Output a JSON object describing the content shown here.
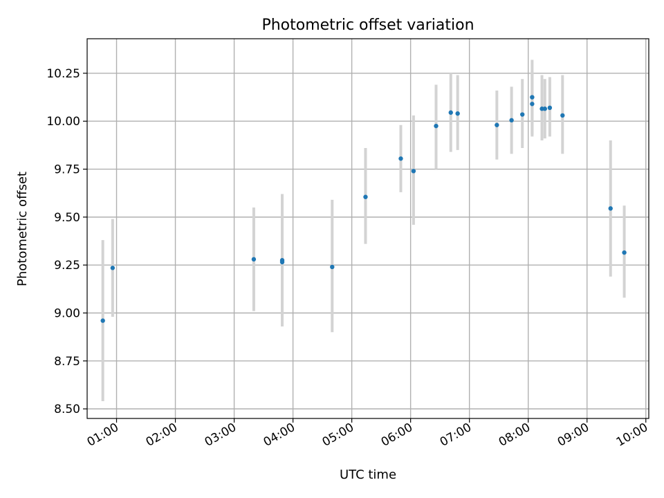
{
  "chart_data": {
    "type": "scatter",
    "title": "Photometric offset variation",
    "xlabel": "UTC time",
    "ylabel": "Photometric offset",
    "x_unit": "hours UTC",
    "xlim": [
      0.5,
      10.05
    ],
    "ylim": [
      8.45,
      10.43
    ],
    "x_ticks": [
      {
        "value": 1,
        "label": "01:00"
      },
      {
        "value": 2,
        "label": "02:00"
      },
      {
        "value": 3,
        "label": "03:00"
      },
      {
        "value": 4,
        "label": "04:00"
      },
      {
        "value": 5,
        "label": "05:00"
      },
      {
        "value": 6,
        "label": "06:00"
      },
      {
        "value": 7,
        "label": "07:00"
      },
      {
        "value": 8,
        "label": "08:00"
      },
      {
        "value": 9,
        "label": "09:00"
      },
      {
        "value": 10,
        "label": "10:00"
      }
    ],
    "y_ticks": [
      {
        "value": 8.5,
        "label": "8.50"
      },
      {
        "value": 8.75,
        "label": "8.75"
      },
      {
        "value": 9.0,
        "label": "9.00"
      },
      {
        "value": 9.25,
        "label": "9.25"
      },
      {
        "value": 9.5,
        "label": "9.50"
      },
      {
        "value": 9.75,
        "label": "9.75"
      },
      {
        "value": 10.0,
        "label": "10.00"
      },
      {
        "value": 10.25,
        "label": "10.25"
      }
    ],
    "grid": true,
    "colors": {
      "point": "#1f77b4",
      "errorbar": "#d3d3d3",
      "grid": "#b0b0b0",
      "axes": "#000000"
    },
    "points": [
      {
        "x": "00:46",
        "y": 8.96,
        "ylow": 8.54,
        "yhigh": 9.38
      },
      {
        "x": "00:56",
        "y": 9.235,
        "ylow": 8.98,
        "yhigh": 9.49
      },
      {
        "x": "03:20",
        "y": 9.28,
        "ylow": 9.01,
        "yhigh": 9.55
      },
      {
        "x": "03:49",
        "y": 9.275,
        "ylow": 8.93,
        "yhigh": 9.62
      },
      {
        "x": "03:49",
        "y": 9.265,
        "ylow": 8.93,
        "yhigh": 9.62
      },
      {
        "x": "04:40",
        "y": 9.24,
        "ylow": 8.9,
        "yhigh": 9.59
      },
      {
        "x": "05:14",
        "y": 9.605,
        "ylow": 9.36,
        "yhigh": 9.86
      },
      {
        "x": "05:50",
        "y": 9.805,
        "ylow": 9.63,
        "yhigh": 9.98
      },
      {
        "x": "06:03",
        "y": 9.74,
        "ylow": 9.46,
        "yhigh": 10.03
      },
      {
        "x": "06:26",
        "y": 9.975,
        "ylow": 9.75,
        "yhigh": 10.19
      },
      {
        "x": "06:41",
        "y": 10.045,
        "ylow": 9.84,
        "yhigh": 10.25
      },
      {
        "x": "06:48",
        "y": 10.04,
        "ylow": 9.85,
        "yhigh": 10.24
      },
      {
        "x": "07:28",
        "y": 9.98,
        "ylow": 9.8,
        "yhigh": 10.16
      },
      {
        "x": "07:43",
        "y": 10.005,
        "ylow": 9.83,
        "yhigh": 10.18
      },
      {
        "x": "07:54",
        "y": 10.035,
        "ylow": 9.86,
        "yhigh": 10.22
      },
      {
        "x": "08:04",
        "y": 10.125,
        "ylow": 9.93,
        "yhigh": 10.32
      },
      {
        "x": "08:04",
        "y": 10.09,
        "ylow": 9.92,
        "yhigh": 10.26
      },
      {
        "x": "08:14",
        "y": 10.065,
        "ylow": 9.9,
        "yhigh": 10.24
      },
      {
        "x": "08:17",
        "y": 10.065,
        "ylow": 9.91,
        "yhigh": 10.22
      },
      {
        "x": "08:22",
        "y": 10.07,
        "ylow": 9.92,
        "yhigh": 10.23
      },
      {
        "x": "08:35",
        "y": 10.03,
        "ylow": 9.83,
        "yhigh": 10.24
      },
      {
        "x": "09:24",
        "y": 9.545,
        "ylow": 9.19,
        "yhigh": 9.9
      },
      {
        "x": "09:38",
        "y": 9.315,
        "ylow": 9.08,
        "yhigh": 9.56
      }
    ]
  }
}
